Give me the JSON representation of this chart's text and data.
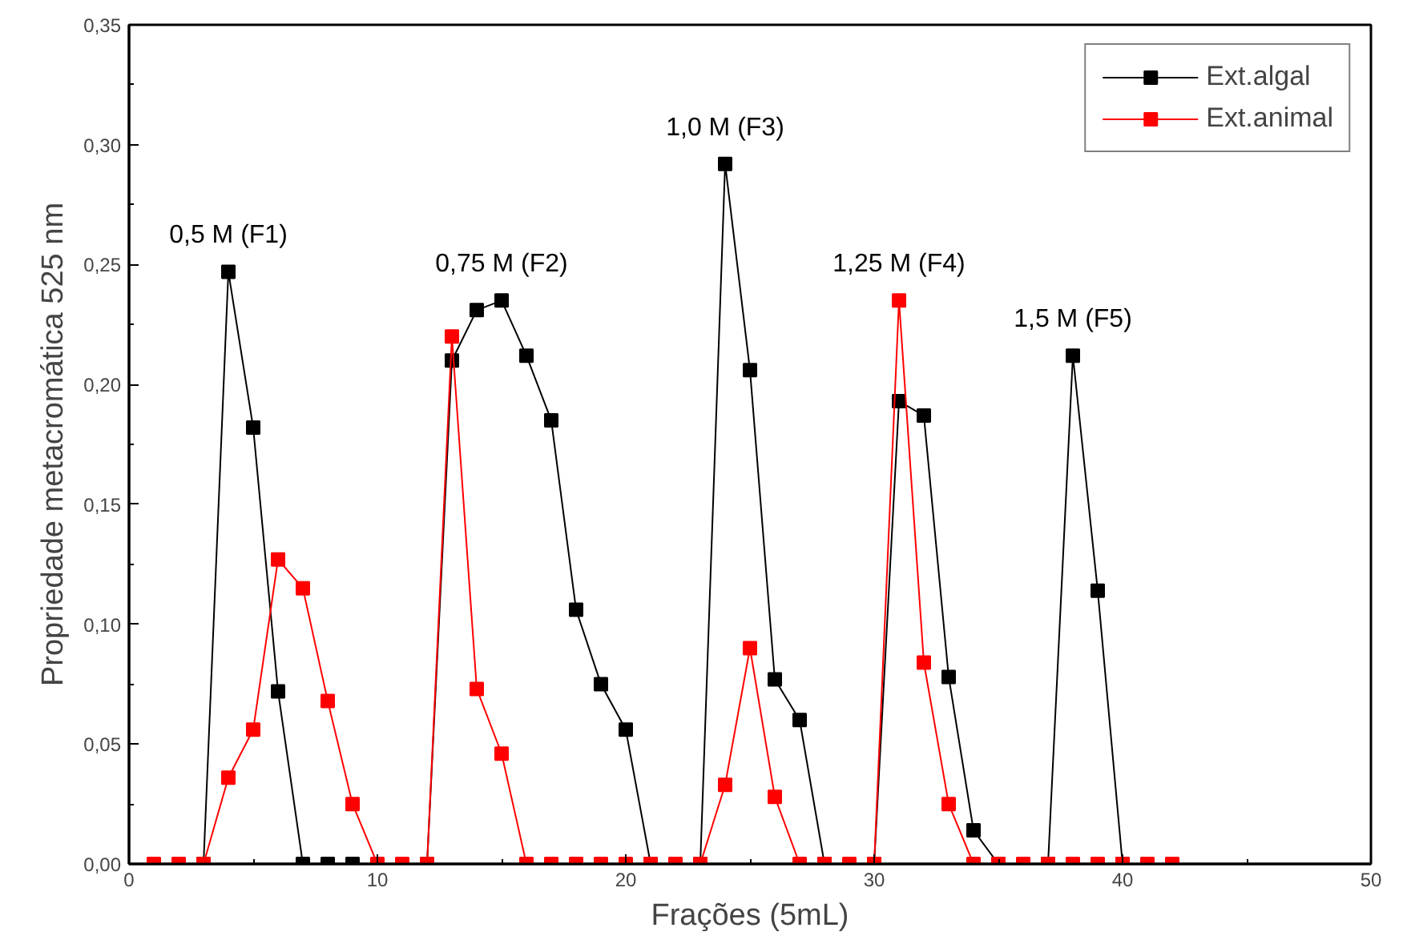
{
  "chart_data": {
    "type": "line",
    "xlabel": "Frações (5mL)",
    "ylabel": "Propriedade metacromática 525 nm",
    "x": [
      1,
      2,
      3,
      4,
      5,
      6,
      7,
      8,
      9,
      10,
      11,
      12,
      13,
      14,
      15,
      16,
      17,
      18,
      19,
      20,
      21,
      22,
      23,
      24,
      25,
      26,
      27,
      28,
      29,
      30,
      31,
      32,
      33,
      34,
      35,
      36,
      37,
      38,
      39,
      40,
      41,
      42
    ],
    "series": [
      {
        "name": "Ext.algal",
        "color": "#000000",
        "values": [
          null,
          null,
          0,
          0.247,
          0.182,
          0.072,
          0,
          0,
          0,
          null,
          null,
          0,
          0.21,
          0.231,
          0.235,
          0.212,
          0.185,
          0.106,
          0.075,
          0.056,
          0,
          null,
          0,
          0.292,
          0.206,
          0.077,
          0.06,
          0,
          null,
          0,
          0.193,
          0.187,
          0.078,
          0.014,
          0,
          null,
          0,
          0.212,
          0.114,
          0,
          null,
          null
        ]
      },
      {
        "name": "Ext.animal",
        "color": "#ff0000",
        "values": [
          0,
          0,
          0,
          0.036,
          0.056,
          0.127,
          0.115,
          0.068,
          0.025,
          0,
          0,
          0,
          0.22,
          0.073,
          0.046,
          0,
          0,
          0,
          0,
          0,
          0,
          0,
          0,
          0.033,
          0.09,
          0.028,
          0,
          0,
          0,
          0,
          0.235,
          0.084,
          0.025,
          0,
          0,
          0,
          0,
          0,
          0,
          0,
          0,
          0
        ]
      }
    ],
    "xlim": [
      0,
      50
    ],
    "xticks": [
      0,
      10,
      20,
      30,
      40,
      50
    ],
    "ylim": [
      0,
      0.35
    ],
    "yticks": [
      {
        "value": 0,
        "label": "0,00"
      },
      {
        "value": 0.05,
        "label": "0,05"
      },
      {
        "value": 0.1,
        "label": "0,10"
      },
      {
        "value": 0.15,
        "label": "0,15"
      },
      {
        "value": 0.2,
        "label": "0,20"
      },
      {
        "value": 0.25,
        "label": "0,25"
      },
      {
        "value": 0.3,
        "label": "0,30"
      },
      {
        "value": 0.35,
        "label": "0,35"
      }
    ],
    "annotations": [
      "0,5 M (F1)",
      "0,75 M (F2)",
      "1,0 M (F3)",
      "1,25 M (F4)",
      "1,5 M (F5)"
    ],
    "legend": "top right",
    "marker": "square",
    "line_style": "solid",
    "grid": false
  }
}
